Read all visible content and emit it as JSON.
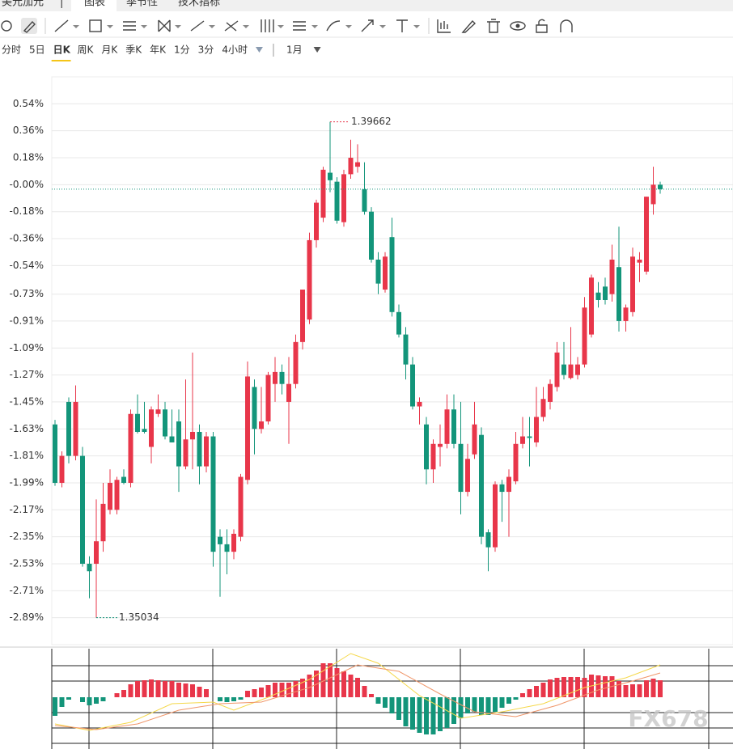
{
  "header": {
    "tabs": [
      "美元加元",
      "图表",
      "季节性",
      "技术指标"
    ],
    "separator": "|"
  },
  "periods": [
    "分时",
    "5日",
    "日K",
    "周K",
    "月K",
    "季K",
    "年K",
    "1分",
    "3分",
    "4小时"
  ],
  "range": "1月",
  "watermark": "FX678",
  "chart_data": [
    {
      "type": "candlestick",
      "up_color": "#e8364a",
      "down_color": "#13957a",
      "grid": true,
      "ylim": [
        -3.07,
        0.72
      ],
      "yticks": [
        {
          "value": 0.54,
          "label": "0.54%"
        },
        {
          "value": 0.36,
          "label": "0.36%"
        },
        {
          "value": 0.18,
          "label": "0.18%"
        },
        {
          "value": 0,
          "label": "-0.00%"
        },
        {
          "value": -0.18,
          "label": "-0.18%"
        },
        {
          "value": -0.36,
          "label": "-0.36%"
        },
        {
          "value": -0.54,
          "label": "-0.54%"
        },
        {
          "value": -0.73,
          "label": "-0.73%"
        },
        {
          "value": -0.91,
          "label": "-0.91%"
        },
        {
          "value": -1.09,
          "label": "-1.09%"
        },
        {
          "value": -1.27,
          "label": "-1.27%"
        },
        {
          "value": -1.45,
          "label": "-1.45%"
        },
        {
          "value": -1.63,
          "label": "-1.63%"
        },
        {
          "value": -1.81,
          "label": "-1.81%"
        },
        {
          "value": -1.99,
          "label": "-1.99%"
        },
        {
          "value": -2.17,
          "label": "-2.17%"
        },
        {
          "value": -2.35,
          "label": "-2.35%"
        },
        {
          "value": -2.53,
          "label": "-2.53%"
        },
        {
          "value": -2.71,
          "label": "-2.71%"
        },
        {
          "value": -2.89,
          "label": "-2.89%"
        }
      ],
      "annotations": [
        "1.39662",
        "1.35034"
      ],
      "candles": [
        [
          -1.6,
          -1.57,
          -2.01,
          -1.99
        ],
        [
          -1.99,
          -1.78,
          -2.02,
          -1.81
        ],
        [
          -1.45,
          -1.42,
          -1.86,
          -1.81
        ],
        [
          -1.81,
          -1.34,
          -1.84,
          -1.45
        ],
        [
          -1.81,
          -1.75,
          -2.55,
          -2.53
        ],
        [
          -2.53,
          -2.48,
          -2.76,
          -2.58
        ],
        [
          -2.53,
          -2.1,
          -2.89,
          -2.38
        ],
        [
          -2.38,
          -1.99,
          -2.45,
          -2.13
        ],
        [
          -2.17,
          -1.9,
          -2.2,
          -1.99
        ],
        [
          -2.17,
          -1.95,
          -2.2,
          -1.97
        ],
        [
          -1.95,
          -1.9,
          -2.0,
          -1.99
        ],
        [
          -1.99,
          -1.5,
          -2.02,
          -1.53
        ],
        [
          -1.53,
          -1.4,
          -1.66,
          -1.65
        ],
        [
          -1.63,
          -1.45,
          -1.66,
          -1.65
        ],
        [
          -1.75,
          -1.48,
          -1.86,
          -1.5
        ],
        [
          -1.53,
          -1.4,
          -1.55,
          -1.5
        ],
        [
          -1.5,
          -1.45,
          -1.7,
          -1.68
        ],
        [
          -1.68,
          -1.5,
          -1.72,
          -1.72
        ],
        [
          -1.58,
          -1.5,
          -2.05,
          -1.88
        ],
        [
          -1.88,
          -1.3,
          -1.9,
          -1.7
        ],
        [
          -1.7,
          -1.12,
          -1.9,
          -1.65
        ],
        [
          -1.65,
          -1.6,
          -2.0,
          -1.88
        ],
        [
          -1.88,
          -1.65,
          -1.92,
          -1.68
        ],
        [
          -1.68,
          -1.65,
          -2.55,
          -2.45
        ],
        [
          -2.35,
          -2.3,
          -2.75,
          -2.4
        ],
        [
          -2.4,
          -2.3,
          -2.6,
          -2.45
        ],
        [
          -2.45,
          -2.3,
          -2.5,
          -2.33
        ],
        [
          -2.35,
          -1.93,
          -2.38,
          -1.95
        ],
        [
          -1.97,
          -1.18,
          -2.0,
          -1.28
        ],
        [
          -1.35,
          -1.3,
          -1.8,
          -1.63
        ],
        [
          -1.63,
          -1.35,
          -1.66,
          -1.58
        ],
        [
          -1.58,
          -1.25,
          -1.6,
          -1.27
        ],
        [
          -1.33,
          -1.15,
          -1.45,
          -1.25
        ],
        [
          -1.25,
          -1.2,
          -1.4,
          -1.33
        ],
        [
          -1.45,
          -1.15,
          -1.73,
          -1.33
        ],
        [
          -1.33,
          -1.0,
          -1.36,
          -1.05
        ],
        [
          -1.05,
          -0.7,
          -1.1,
          -0.7
        ],
        [
          -0.9,
          -0.32,
          -0.93,
          -0.37
        ],
        [
          -0.37,
          -0.1,
          -0.42,
          -0.12
        ],
        [
          -0.22,
          0.12,
          -0.25,
          0.1
        ],
        [
          0.08,
          0.42,
          -0.05,
          0.03
        ],
        [
          0.02,
          0.05,
          -0.26,
          -0.24
        ],
        [
          -0.25,
          0.1,
          -0.28,
          0.07
        ],
        [
          0.07,
          0.3,
          0.04,
          0.18
        ],
        [
          0.12,
          0.27,
          0.08,
          0.15
        ],
        [
          -0.03,
          0.15,
          -0.2,
          -0.18
        ],
        [
          -0.18,
          -0.15,
          -0.52,
          -0.5
        ],
        [
          -0.5,
          -0.45,
          -0.73,
          -0.66
        ],
        [
          -0.7,
          -0.45,
          -0.72,
          -0.48
        ],
        [
          -0.35,
          -0.22,
          -0.88,
          -0.85
        ],
        [
          -0.85,
          -0.8,
          -1.02,
          -1.0
        ],
        [
          -1.0,
          -0.95,
          -1.3,
          -1.2
        ],
        [
          -1.2,
          -1.15,
          -1.5,
          -1.48
        ],
        [
          -1.48,
          -1.42,
          -1.6,
          -1.45
        ],
        [
          -1.6,
          -1.55,
          -2.0,
          -1.9
        ],
        [
          -1.9,
          -1.7,
          -1.99,
          -1.73
        ],
        [
          -1.75,
          -1.6,
          -1.88,
          -1.73
        ],
        [
          -1.73,
          -1.4,
          -1.76,
          -1.5
        ],
        [
          -1.5,
          -1.4,
          -1.76,
          -1.73
        ],
        [
          -1.73,
          -1.45,
          -2.2,
          -2.05
        ],
        [
          -2.05,
          -1.73,
          -2.08,
          -1.83
        ],
        [
          -1.8,
          -1.45,
          -1.83,
          -1.6
        ],
        [
          -1.67,
          -1.62,
          -2.4,
          -2.35
        ],
        [
          -2.32,
          -2.3,
          -2.58,
          -2.42
        ],
        [
          -2.42,
          -1.98,
          -2.45,
          -2.0
        ],
        [
          -2.0,
          -1.97,
          -2.25,
          -2.05
        ],
        [
          -2.05,
          -1.9,
          -2.35,
          -1.95
        ],
        [
          -1.98,
          -1.65,
          -2.0,
          -1.73
        ],
        [
          -1.73,
          -1.55,
          -1.76,
          -1.68
        ],
        [
          -1.68,
          -1.55,
          -1.88,
          -1.69
        ],
        [
          -1.72,
          -1.35,
          -1.75,
          -1.55
        ],
        [
          -1.55,
          -1.35,
          -1.58,
          -1.43
        ],
        [
          -1.45,
          -1.3,
          -1.5,
          -1.33
        ],
        [
          -1.35,
          -1.05,
          -1.38,
          -1.12
        ],
        [
          -1.2,
          -1.05,
          -1.3,
          -1.27
        ],
        [
          -1.29,
          -0.95,
          -1.3,
          -1.2
        ],
        [
          -1.27,
          -1.15,
          -1.3,
          -1.2
        ],
        [
          -1.2,
          -0.75,
          -1.22,
          -0.82
        ],
        [
          -1.0,
          -0.6,
          -1.02,
          -0.62
        ],
        [
          -0.72,
          -0.65,
          -0.82,
          -0.77
        ],
        [
          -0.68,
          -0.62,
          -0.8,
          -0.77
        ],
        [
          -0.73,
          -0.4,
          -0.78,
          -0.5
        ],
        [
          -0.55,
          -0.28,
          -0.98,
          -0.91
        ],
        [
          -0.91,
          -0.8,
          -0.98,
          -0.82
        ],
        [
          -0.85,
          -0.42,
          -0.88,
          -0.48
        ],
        [
          -0.52,
          -0.45,
          -0.65,
          -0.5
        ],
        [
          -0.58,
          -0.08,
          -0.6,
          -0.08
        ],
        [
          -0.13,
          0.12,
          -0.2,
          0.0
        ],
        [
          0.0,
          0.02,
          -0.06,
          -0.03
        ]
      ]
    },
    {
      "type": "macd",
      "ylim": [
        -5.9,
        6.2
      ],
      "up_color": "#e8364a",
      "down_color": "#13957a",
      "histogram": [
        -2.3,
        -1.2,
        -0.3,
        0,
        -0.6,
        -1.0,
        -0.8,
        -0.5,
        0,
        0.5,
        0.9,
        1.6,
        2.0,
        2.1,
        2.2,
        2.1,
        2.0,
        2.0,
        1.8,
        1.7,
        1.6,
        1.3,
        1.0,
        0,
        -0.5,
        -0.6,
        -0.5,
        -0.3,
        0.8,
        1.0,
        1.2,
        1.5,
        1.8,
        1.8,
        1.8,
        2.0,
        2.3,
        2.8,
        3.3,
        4.2,
        4.2,
        3.6,
        3.2,
        2.8,
        2.4,
        1.4,
        0.4,
        -0.8,
        -1.3,
        -2.0,
        -2.8,
        -3.6,
        -4.0,
        -4.4,
        -4.6,
        -4.6,
        -4.2,
        -3.8,
        -3.3,
        -2.6,
        -2.0,
        -1.8,
        -2.2,
        -2.2,
        -1.8,
        -1.3,
        -0.8,
        -0.3,
        0.5,
        1.0,
        1.4,
        1.8,
        2.2,
        2.4,
        2.5,
        2.5,
        2.5,
        2.4,
        2.8,
        2.7,
        2.6,
        2.6,
        2.0,
        1.5,
        1.6,
        1.6,
        2.1,
        2.3,
        2.1
      ],
      "series": [
        {
          "color": "#f5d84a",
          "x": [
            0,
            5,
            11,
            17,
            23,
            26,
            31,
            37,
            43,
            47,
            53,
            59,
            65,
            71,
            77,
            83,
            88
          ],
          "values": [
            -3.3,
            -4.1,
            -3.1,
            -0.8,
            -0.6,
            -1.6,
            0,
            2.2,
            5.4,
            4.2,
            0.2,
            -2.6,
            -1.8,
            -0.8,
            1.2,
            2.4,
            4.0
          ]
        },
        {
          "color": "#f0966a",
          "x": [
            0,
            6,
            12,
            18,
            24,
            30,
            37,
            44,
            50,
            56,
            61,
            67,
            73,
            79,
            84,
            88
          ],
          "values": [
            -3.5,
            -4.0,
            -3.3,
            -1.6,
            -0.8,
            -0.6,
            1.2,
            4.0,
            3.2,
            0.4,
            -1.8,
            -2.4,
            -1.0,
            0.9,
            2.0,
            3.0
          ]
        }
      ]
    }
  ]
}
